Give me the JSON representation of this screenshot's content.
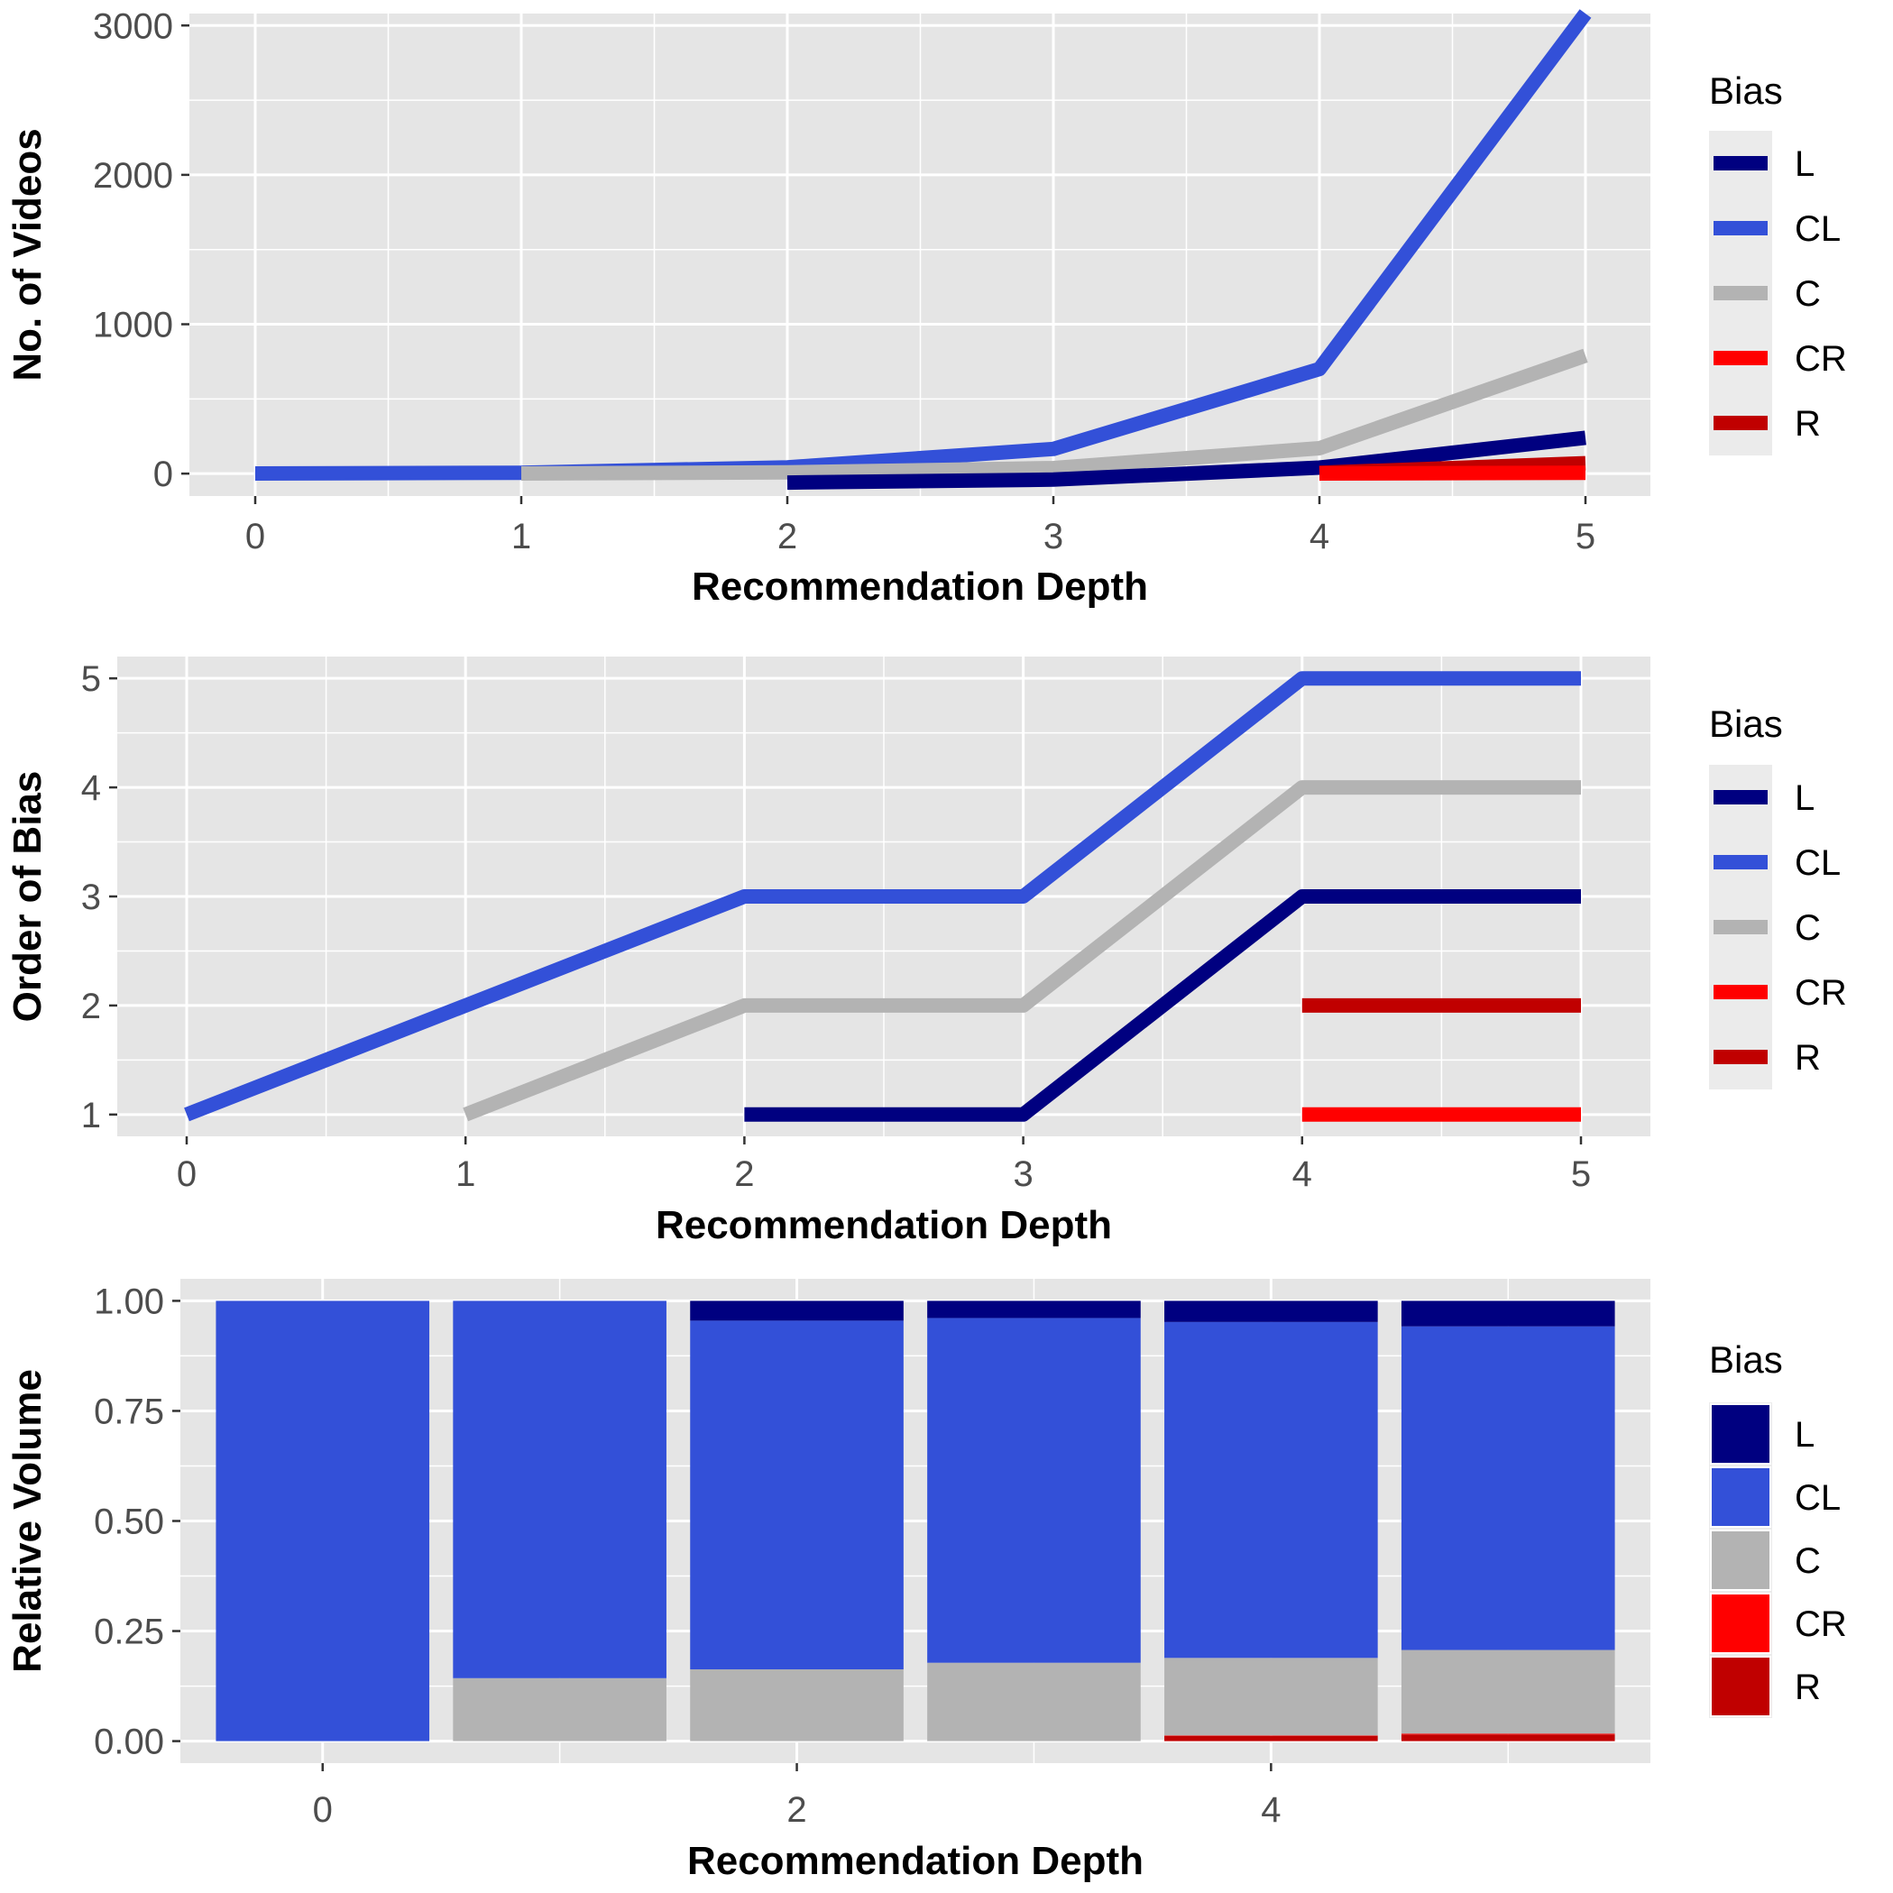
{
  "colors": {
    "L": "#000080",
    "CL": "#3350D8",
    "C": "#B3B3B3",
    "CR": "#FF0000",
    "R": "#C00000",
    "panel_background": "#E5E5E5",
    "grid": "#FFFFFF"
  },
  "chart_data": [
    {
      "type": "line",
      "xlabel": "Recommendation Depth",
      "ylabel": "No. of Videos",
      "xlim": [
        0,
        5
      ],
      "ylim": [
        -150,
        3080
      ],
      "xticks": [
        0,
        1,
        2,
        3,
        4,
        5
      ],
      "yticks": [
        0,
        1000,
        2000,
        3000
      ],
      "legend": {
        "title": "Bias",
        "position": "right",
        "entries": [
          "L",
          "CL",
          "C",
          "CR",
          "R"
        ]
      },
      "series": [
        {
          "name": "CL",
          "x": [
            0,
            1,
            2,
            3,
            4,
            5
          ],
          "y": [
            1,
            6,
            42,
            165,
            700,
            3080
          ]
        },
        {
          "name": "C",
          "x": [
            1,
            2,
            3,
            4,
            5
          ],
          "y": [
            1,
            8,
            37,
            170,
            790
          ]
        },
        {
          "name": "L",
          "x": [
            2,
            3,
            4,
            5
          ],
          "y": [
            -60,
            -40,
            40,
            240
          ]
        },
        {
          "name": "R",
          "x": [
            4,
            5
          ],
          "y": [
            5,
            70
          ]
        },
        {
          "name": "CR",
          "x": [
            4,
            5
          ],
          "y": [
            1,
            5
          ]
        }
      ]
    },
    {
      "type": "line",
      "xlabel": "Recommendation Depth",
      "ylabel": "Order of Bias",
      "xlim": [
        0,
        5
      ],
      "ylim": [
        0.8,
        5.2
      ],
      "xticks": [
        0,
        1,
        2,
        3,
        4,
        5
      ],
      "yticks": [
        1,
        2,
        3,
        4,
        5
      ],
      "legend": {
        "title": "Bias",
        "position": "right",
        "entries": [
          "L",
          "CL",
          "C",
          "CR",
          "R"
        ]
      },
      "series": [
        {
          "name": "CL",
          "x": [
            0,
            1,
            2,
            3,
            4,
            5
          ],
          "y": [
            1,
            2,
            3,
            3,
            5,
            5
          ]
        },
        {
          "name": "C",
          "x": [
            1,
            2,
            3,
            4,
            5
          ],
          "y": [
            1,
            2,
            2,
            4,
            4
          ]
        },
        {
          "name": "L",
          "x": [
            2,
            3,
            4,
            5
          ],
          "y": [
            1,
            1,
            3,
            3
          ]
        },
        {
          "name": "R",
          "x": [
            4,
            5
          ],
          "y": [
            2,
            2
          ]
        },
        {
          "name": "CR",
          "x": [
            4,
            5
          ],
          "y": [
            1,
            1
          ]
        }
      ]
    },
    {
      "type": "bar",
      "stacked": true,
      "xlabel": "Recommendation Depth",
      "ylabel": "Relative Volume",
      "xlim": [
        -0.6,
        5.6
      ],
      "ylim": [
        -0.05,
        1.05
      ],
      "xticks": [
        0,
        2,
        4
      ],
      "yticks": [
        "0.00",
        "0.25",
        "0.50",
        "0.75",
        "1.00"
      ],
      "categories": [
        0,
        1,
        2,
        3,
        4,
        5
      ],
      "legend": {
        "title": "Bias",
        "position": "right",
        "entries": [
          "L",
          "CL",
          "C",
          "CR",
          "R"
        ]
      },
      "series": [
        {
          "name": "R",
          "values": [
            0,
            0,
            0,
            0,
            0.012,
            0.015
          ]
        },
        {
          "name": "CR",
          "values": [
            0,
            0,
            0,
            0,
            0.001,
            0.002
          ]
        },
        {
          "name": "C",
          "values": [
            0,
            0.143,
            0.163,
            0.178,
            0.176,
            0.19
          ]
        },
        {
          "name": "CL",
          "values": [
            1.0,
            0.857,
            0.792,
            0.783,
            0.763,
            0.735
          ]
        },
        {
          "name": "L",
          "values": [
            0,
            0,
            0.045,
            0.039,
            0.048,
            0.058
          ]
        }
      ]
    }
  ]
}
